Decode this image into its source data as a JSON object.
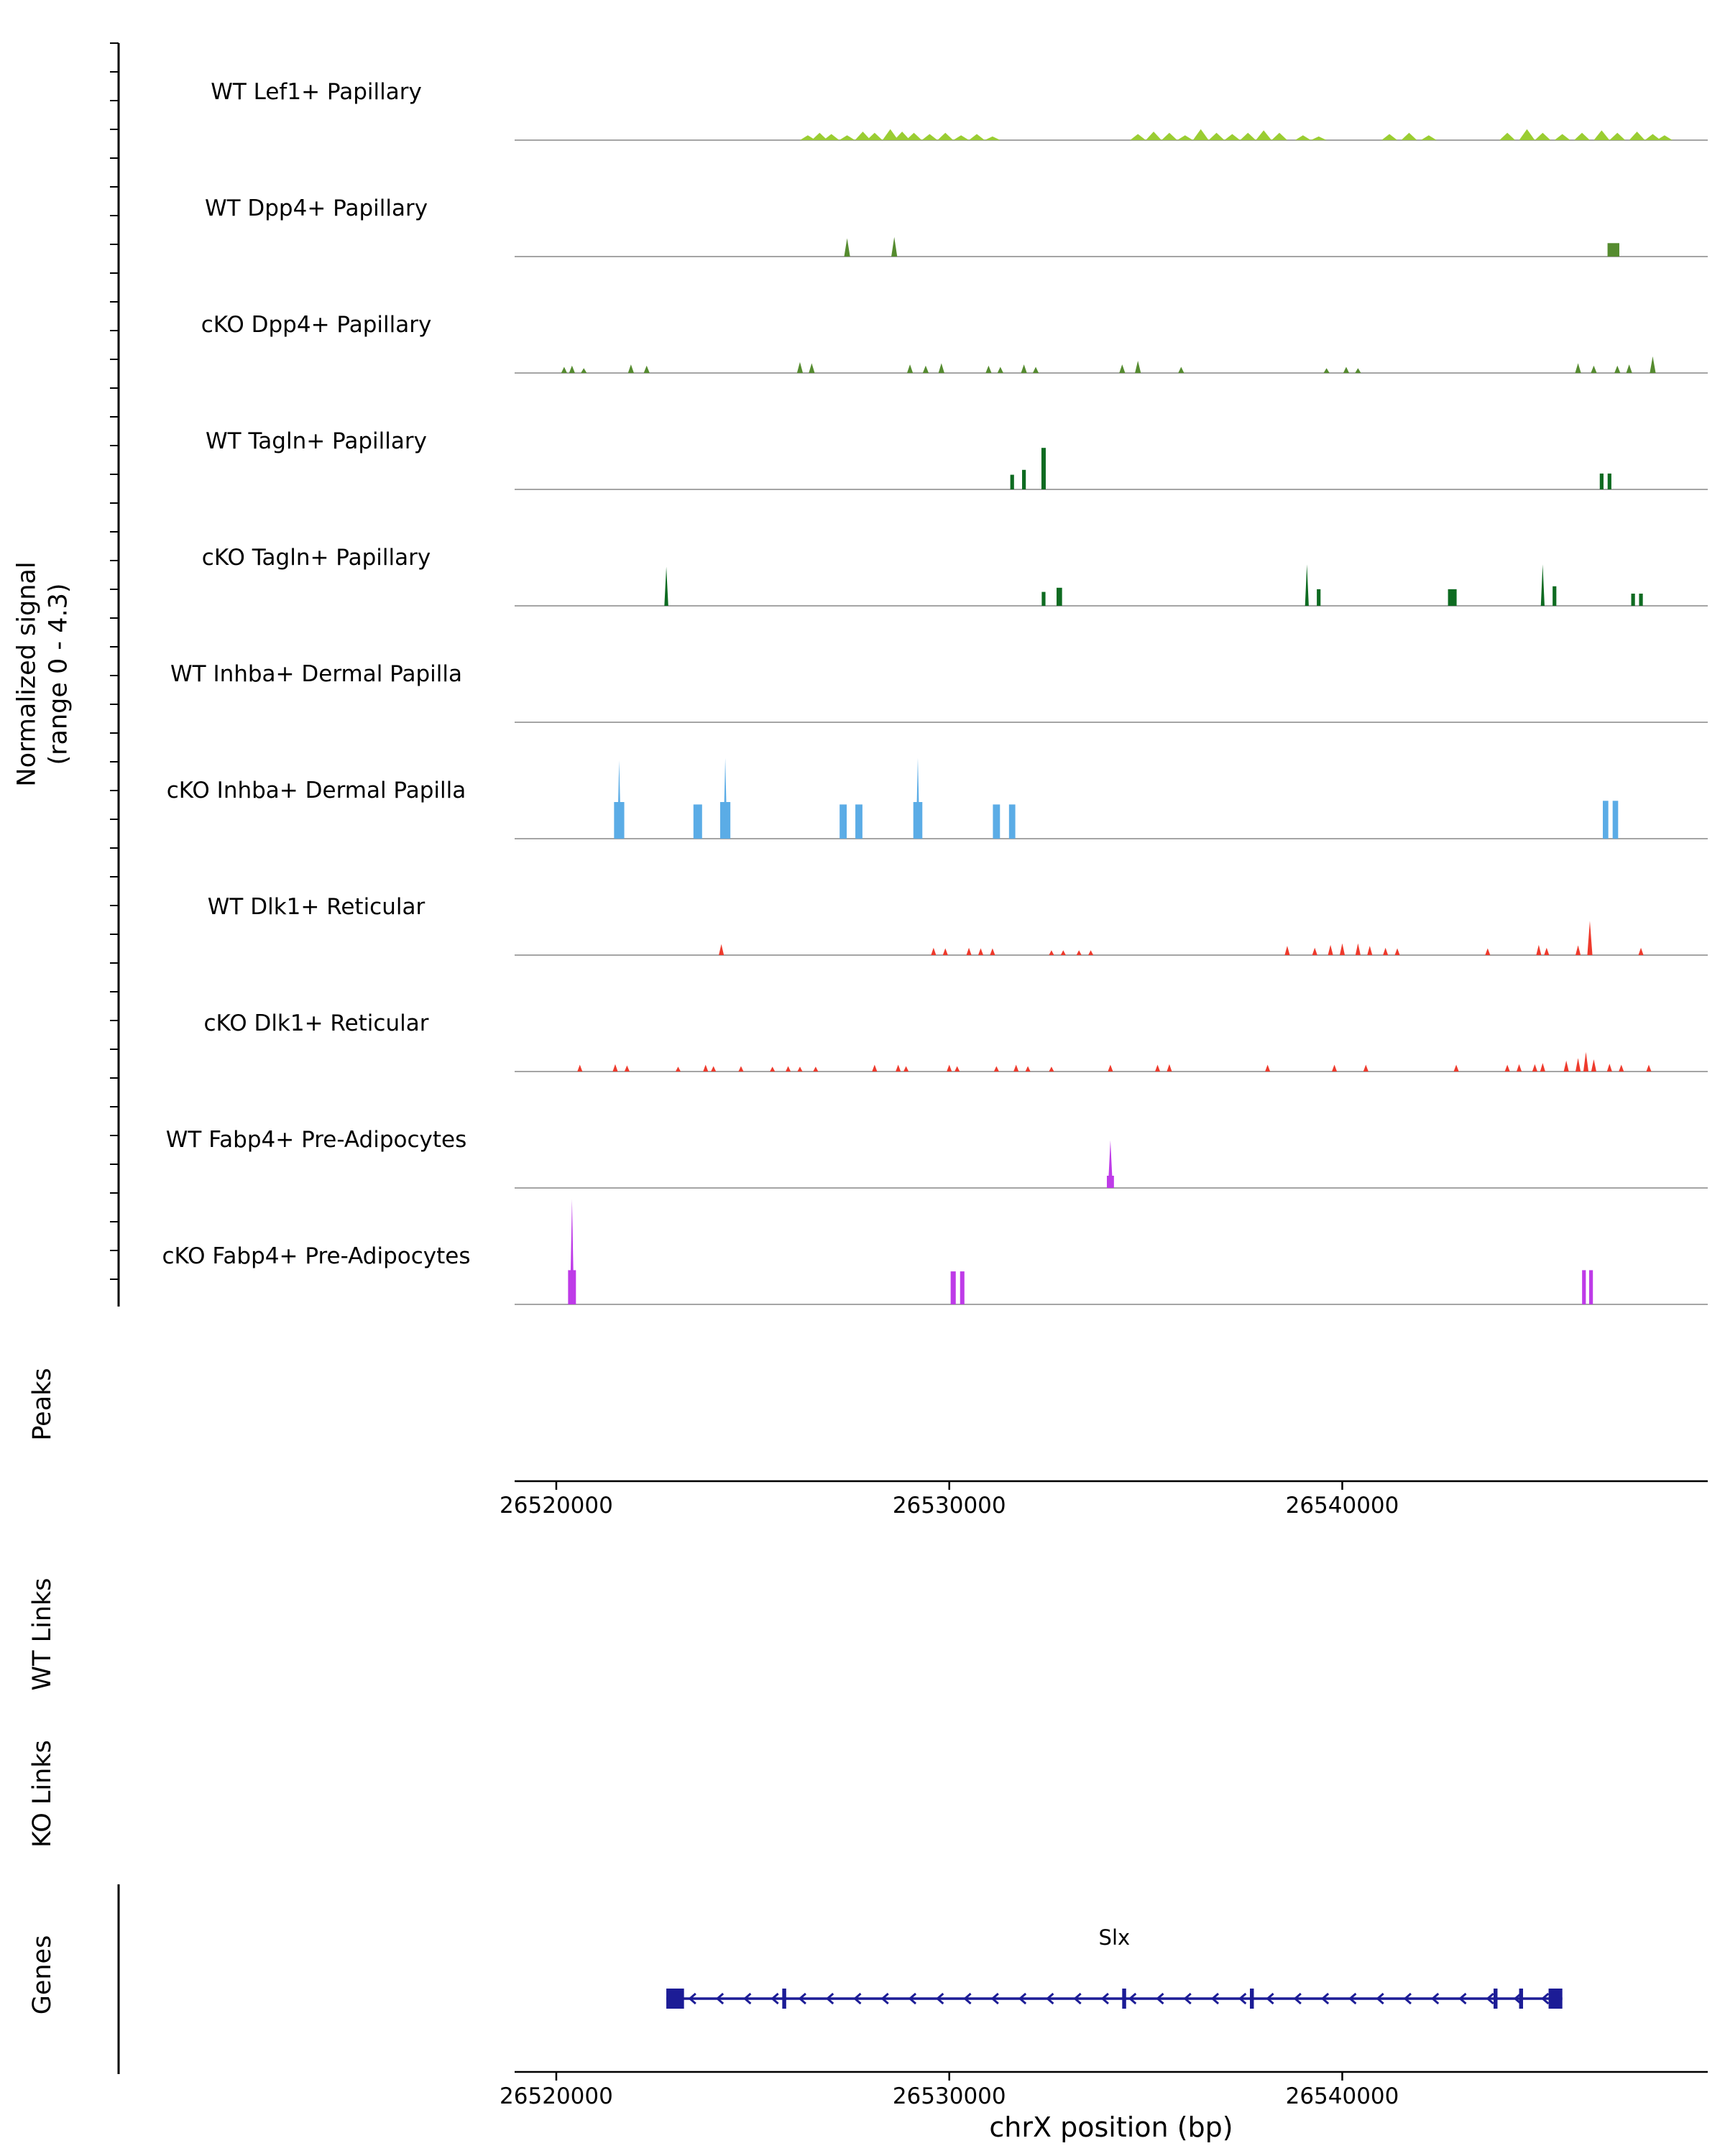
{
  "figure": {
    "ylabel_line1": "Normalized signal",
    "ylabel_line2": "(range 0 - 4.3)",
    "xlabel": "chrX position (bp)",
    "sections": {
      "peaks": "Peaks",
      "wt_links": "WT Links",
      "ko_links": "KO Links",
      "genes": "Genes"
    }
  },
  "chart_data": {
    "type": "area",
    "subtype": "genome-coverage-tracks",
    "xlabel": "chrX position (bp)",
    "ylabel": "Normalized signal (range 0 - 4.3)",
    "signal_range": [
      0,
      4.3
    ],
    "x_domain": [
      26518940,
      26549300
    ],
    "x_ticks": [
      "26520000",
      "26530000",
      "26540000"
    ],
    "x_tick_values": [
      26520000,
      26530000,
      26540000
    ],
    "tracks": [
      {
        "label": "WT Lef1+ Papillary",
        "color": "#9ACD32",
        "shape": "tri",
        "peak_width": 400,
        "peaks": [
          [
            26526400,
            0.2
          ],
          [
            26526700,
            0.3
          ],
          [
            26527000,
            0.25
          ],
          [
            26527400,
            0.2
          ],
          [
            26527800,
            0.35
          ],
          [
            26528100,
            0.3
          ],
          [
            26528500,
            0.45
          ],
          [
            26528800,
            0.35
          ],
          [
            26529100,
            0.3
          ],
          [
            26529500,
            0.25
          ],
          [
            26529900,
            0.3
          ],
          [
            26530300,
            0.2
          ],
          [
            26530700,
            0.25
          ],
          [
            26531100,
            0.15
          ],
          [
            26534800,
            0.25
          ],
          [
            26535200,
            0.35
          ],
          [
            26535600,
            0.3
          ],
          [
            26536000,
            0.2
          ],
          [
            26536400,
            0.45
          ],
          [
            26536800,
            0.3
          ],
          [
            26537200,
            0.25
          ],
          [
            26537600,
            0.3
          ],
          [
            26538000,
            0.4
          ],
          [
            26538400,
            0.3
          ],
          [
            26539000,
            0.2
          ],
          [
            26539400,
            0.15
          ],
          [
            26541200,
            0.25
          ],
          [
            26541700,
            0.3
          ],
          [
            26542200,
            0.2
          ],
          [
            26544200,
            0.3
          ],
          [
            26544700,
            0.45
          ],
          [
            26545100,
            0.3
          ],
          [
            26545600,
            0.25
          ],
          [
            26546100,
            0.3
          ],
          [
            26546600,
            0.4
          ],
          [
            26547000,
            0.3
          ],
          [
            26547500,
            0.35
          ],
          [
            26547900,
            0.25
          ],
          [
            26548200,
            0.2
          ]
        ]
      },
      {
        "label": "WT Dpp4+ Papillary",
        "color": "#558B2F",
        "shape": "tri",
        "peak_width": 150,
        "peaks": [
          [
            26527400,
            0.75,
            150
          ],
          [
            26528600,
            0.8,
            150
          ],
          [
            26546900,
            0.55,
            300,
            "bar"
          ]
        ]
      },
      {
        "label": "cKO Dpp4+ Papillary",
        "color": "#558B2F",
        "shape": "tri",
        "peak_width": 150,
        "peaks": [
          [
            26520200,
            0.25
          ],
          [
            26520400,
            0.3
          ],
          [
            26520700,
            0.2
          ],
          [
            26521900,
            0.35
          ],
          [
            26522300,
            0.3
          ],
          [
            26526200,
            0.45
          ],
          [
            26526500,
            0.4
          ],
          [
            26529000,
            0.35
          ],
          [
            26529400,
            0.3
          ],
          [
            26529800,
            0.4
          ],
          [
            26531000,
            0.3
          ],
          [
            26531300,
            0.25
          ],
          [
            26531900,
            0.35
          ],
          [
            26532200,
            0.25
          ],
          [
            26534400,
            0.35
          ],
          [
            26534800,
            0.5
          ],
          [
            26535900,
            0.25
          ],
          [
            26539600,
            0.2
          ],
          [
            26540100,
            0.25
          ],
          [
            26540400,
            0.2
          ],
          [
            26546000,
            0.4
          ],
          [
            26546400,
            0.3
          ],
          [
            26547000,
            0.3
          ],
          [
            26547300,
            0.35
          ],
          [
            26547900,
            0.68
          ]
        ]
      },
      {
        "label": "WT Tagln+ Papillary",
        "color": "#0E6B21",
        "shape": "bar",
        "peak_width": 90,
        "peaks": [
          [
            26531600,
            0.6,
            90
          ],
          [
            26531900,
            0.8,
            90
          ],
          [
            26532400,
            1.7,
            110
          ],
          [
            26546600,
            0.65,
            80
          ],
          [
            26546800,
            0.65,
            80
          ]
        ]
      },
      {
        "label": "cKO Tagln+ Papillary",
        "color": "#0E6B21",
        "shape": "tri",
        "peak_width": 90,
        "peaks": [
          [
            26522800,
            1.6,
            100
          ],
          [
            26532400,
            0.57,
            90,
            "bar"
          ],
          [
            26532800,
            0.74,
            140,
            "bar"
          ],
          [
            26539100,
            1.7,
            80
          ],
          [
            26539400,
            0.68,
            90,
            "bar"
          ],
          [
            26542800,
            0.68,
            220,
            "bar"
          ],
          [
            26545100,
            1.7,
            90
          ],
          [
            26545400,
            0.8,
            90,
            "bar"
          ],
          [
            26547400,
            0.5,
            80,
            "bar"
          ],
          [
            26547600,
            0.5,
            80,
            "bar"
          ]
        ]
      },
      {
        "label": "WT Inhba+ Dermal Papilla",
        "color": "#5BACE6",
        "shape": "bar",
        "peak_width": 200,
        "peaks": []
      },
      {
        "label": "cKO Inhba+ Dermal Papilla",
        "color": "#5BACE6",
        "shape": "bar",
        "peak_width": 200,
        "peaks": [
          [
            26521600,
            1.5,
            260
          ],
          [
            26521600,
            3.2,
            90,
            "tri"
          ],
          [
            26523600,
            1.4,
            220
          ],
          [
            26524300,
            1.5,
            260
          ],
          [
            26524300,
            3.3,
            90,
            "tri"
          ],
          [
            26527300,
            1.4,
            180
          ],
          [
            26527700,
            1.4,
            180
          ],
          [
            26529200,
            1.5,
            230
          ],
          [
            26529200,
            3.3,
            90,
            "tri"
          ],
          [
            26531200,
            1.4,
            180
          ],
          [
            26531600,
            1.4,
            160
          ],
          [
            26546700,
            1.55,
            140
          ],
          [
            26546950,
            1.55,
            140
          ]
        ]
      },
      {
        "label": "WT Dlk1+ Reticular",
        "color": "#EE3A2C",
        "shape": "tri",
        "peak_width": 130,
        "peaks": [
          [
            26524200,
            0.45
          ],
          [
            26529600,
            0.3
          ],
          [
            26529900,
            0.28
          ],
          [
            26530500,
            0.3
          ],
          [
            26530800,
            0.28
          ],
          [
            26531100,
            0.28
          ],
          [
            26532600,
            0.2
          ],
          [
            26532900,
            0.2
          ],
          [
            26533300,
            0.2
          ],
          [
            26533600,
            0.2
          ],
          [
            26538600,
            0.38
          ],
          [
            26539300,
            0.3
          ],
          [
            26539700,
            0.42
          ],
          [
            26540000,
            0.48
          ],
          [
            26540400,
            0.48
          ],
          [
            26540700,
            0.38
          ],
          [
            26541100,
            0.3
          ],
          [
            26541400,
            0.28
          ],
          [
            26543700,
            0.28
          ],
          [
            26545000,
            0.42
          ],
          [
            26545200,
            0.3
          ],
          [
            26546000,
            0.4
          ],
          [
            26546300,
            1.4
          ],
          [
            26547600,
            0.3
          ]
        ]
      },
      {
        "label": "cKO Dlk1+ Reticular",
        "color": "#EE3A2C",
        "shape": "tri",
        "peak_width": 130,
        "peaks": [
          [
            26520600,
            0.28
          ],
          [
            26521500,
            0.3
          ],
          [
            26521800,
            0.25
          ],
          [
            26523100,
            0.2
          ],
          [
            26523800,
            0.28
          ],
          [
            26524000,
            0.22
          ],
          [
            26524700,
            0.22
          ],
          [
            26525500,
            0.2
          ],
          [
            26525900,
            0.22
          ],
          [
            26526200,
            0.2
          ],
          [
            26526600,
            0.2
          ],
          [
            26528100,
            0.28
          ],
          [
            26528700,
            0.28
          ],
          [
            26528900,
            0.22
          ],
          [
            26530000,
            0.28
          ],
          [
            26530200,
            0.22
          ],
          [
            26531200,
            0.22
          ],
          [
            26531700,
            0.28
          ],
          [
            26532000,
            0.22
          ],
          [
            26532600,
            0.2
          ],
          [
            26534100,
            0.28
          ],
          [
            26535300,
            0.28
          ],
          [
            26535600,
            0.3
          ],
          [
            26538100,
            0.28
          ],
          [
            26539800,
            0.28
          ],
          [
            26540600,
            0.28
          ],
          [
            26542900,
            0.28
          ],
          [
            26544200,
            0.28
          ],
          [
            26544500,
            0.3
          ],
          [
            26544900,
            0.3
          ],
          [
            26545100,
            0.35
          ],
          [
            26545700,
            0.45
          ],
          [
            26546000,
            0.55
          ],
          [
            26546200,
            0.8
          ],
          [
            26546400,
            0.5
          ],
          [
            26546800,
            0.32
          ],
          [
            26547100,
            0.28
          ],
          [
            26547800,
            0.28
          ]
        ]
      },
      {
        "label": "WT Fabp4+ Pre-Adipocytes",
        "color": "#BE3BE8",
        "shape": "tri",
        "peak_width": 120,
        "peaks": [
          [
            26534100,
            1.95,
            120
          ],
          [
            26534100,
            0.5,
            180,
            "bar"
          ]
        ]
      },
      {
        "label": "cKO Fabp4+ Pre-Adipocytes",
        "color": "#BE3BE8",
        "shape": "tri",
        "peak_width": 120,
        "peaks": [
          [
            26520400,
            4.3,
            100
          ],
          [
            26520400,
            1.4,
            200,
            "bar"
          ],
          [
            26530100,
            1.35,
            130,
            "bar"
          ],
          [
            26530330,
            1.35,
            110,
            "bar"
          ],
          [
            26546150,
            1.4,
            90,
            "bar"
          ],
          [
            26546330,
            1.4,
            90,
            "bar"
          ]
        ]
      }
    ],
    "gene": {
      "name": "Slx",
      "start": 26522800,
      "end": 26545600,
      "strand": "-",
      "color": "#1C1C96",
      "exons": [
        [
          26522800,
          26523250
        ],
        [
          26525750,
          26525850
        ],
        [
          26534400,
          26534500
        ],
        [
          26537650,
          26537750
        ],
        [
          26543850,
          26543950
        ],
        [
          26544500,
          26544600
        ],
        [
          26545250,
          26545600
        ]
      ]
    }
  }
}
